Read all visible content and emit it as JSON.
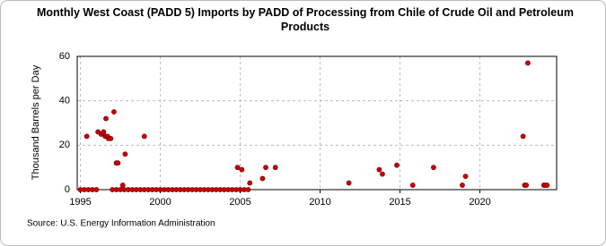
{
  "chart_data": {
    "type": "scatter",
    "title": "Monthly West Coast (PADD 5) Imports by PADD of Processing from Chile of Crude Oil and Petroleum Products",
    "y_label": "Thousand Barrels per Day",
    "source": "Source: U.S. Energy Information Administration",
    "color": "#cc0000",
    "grid": true,
    "xlim": [
      1994.8,
      2024.8
    ],
    "xticks": [
      1995,
      2000,
      2005,
      2010,
      2015,
      2020
    ],
    "ylim": [
      0,
      60
    ],
    "yticks": [
      0,
      20,
      40,
      60
    ],
    "x": [
      1995.0,
      1995.25,
      1995.4,
      1995.5,
      1995.75,
      1996.0,
      1996.1,
      1996.3,
      1996.45,
      1996.55,
      1996.6,
      1996.7,
      1996.75,
      1996.9,
      1997.1,
      1997.25,
      1997.35,
      1997.65,
      1997.8,
      1999.0,
      1997.0,
      1997.25,
      1997.5,
      1997.75,
      1998.0,
      1998.25,
      1998.5,
      1998.75,
      1999.0,
      1999.25,
      1999.5,
      1999.75,
      2000.0,
      2000.25,
      2000.5,
      2000.75,
      2001.0,
      2001.25,
      2001.5,
      2001.75,
      2002.0,
      2002.25,
      2002.5,
      2002.75,
      2003.0,
      2003.25,
      2003.5,
      2003.75,
      2004.0,
      2004.25,
      2004.5,
      2004.75,
      2005.0,
      2005.25,
      2005.5,
      2004.83,
      2005.1,
      2005.6,
      2006.4,
      2006.6,
      2007.2,
      2011.8,
      2013.7,
      2013.9,
      2014.8,
      2015.8,
      2017.1,
      2018.9,
      2019.1,
      2022.7,
      2022.8,
      2022.9,
      2023.0,
      2024.0,
      2024.1,
      2024.2
    ],
    "values": [
      0,
      0,
      24,
      0,
      0,
      0,
      26,
      25,
      26,
      24,
      32,
      24,
      23,
      23,
      35,
      12,
      12,
      2,
      16,
      24,
      0,
      0,
      0,
      0,
      0,
      0,
      0,
      0,
      0,
      0,
      0,
      0,
      0,
      0,
      0,
      0,
      0,
      0,
      0,
      0,
      0,
      0,
      0,
      0,
      0,
      0,
      0,
      0,
      0,
      0,
      0,
      0,
      0,
      0,
      0,
      10,
      9,
      3,
      5,
      10,
      10,
      3,
      9,
      7,
      11,
      2,
      10,
      2,
      6,
      24,
      2,
      2,
      57,
      2,
      2,
      2
    ]
  }
}
